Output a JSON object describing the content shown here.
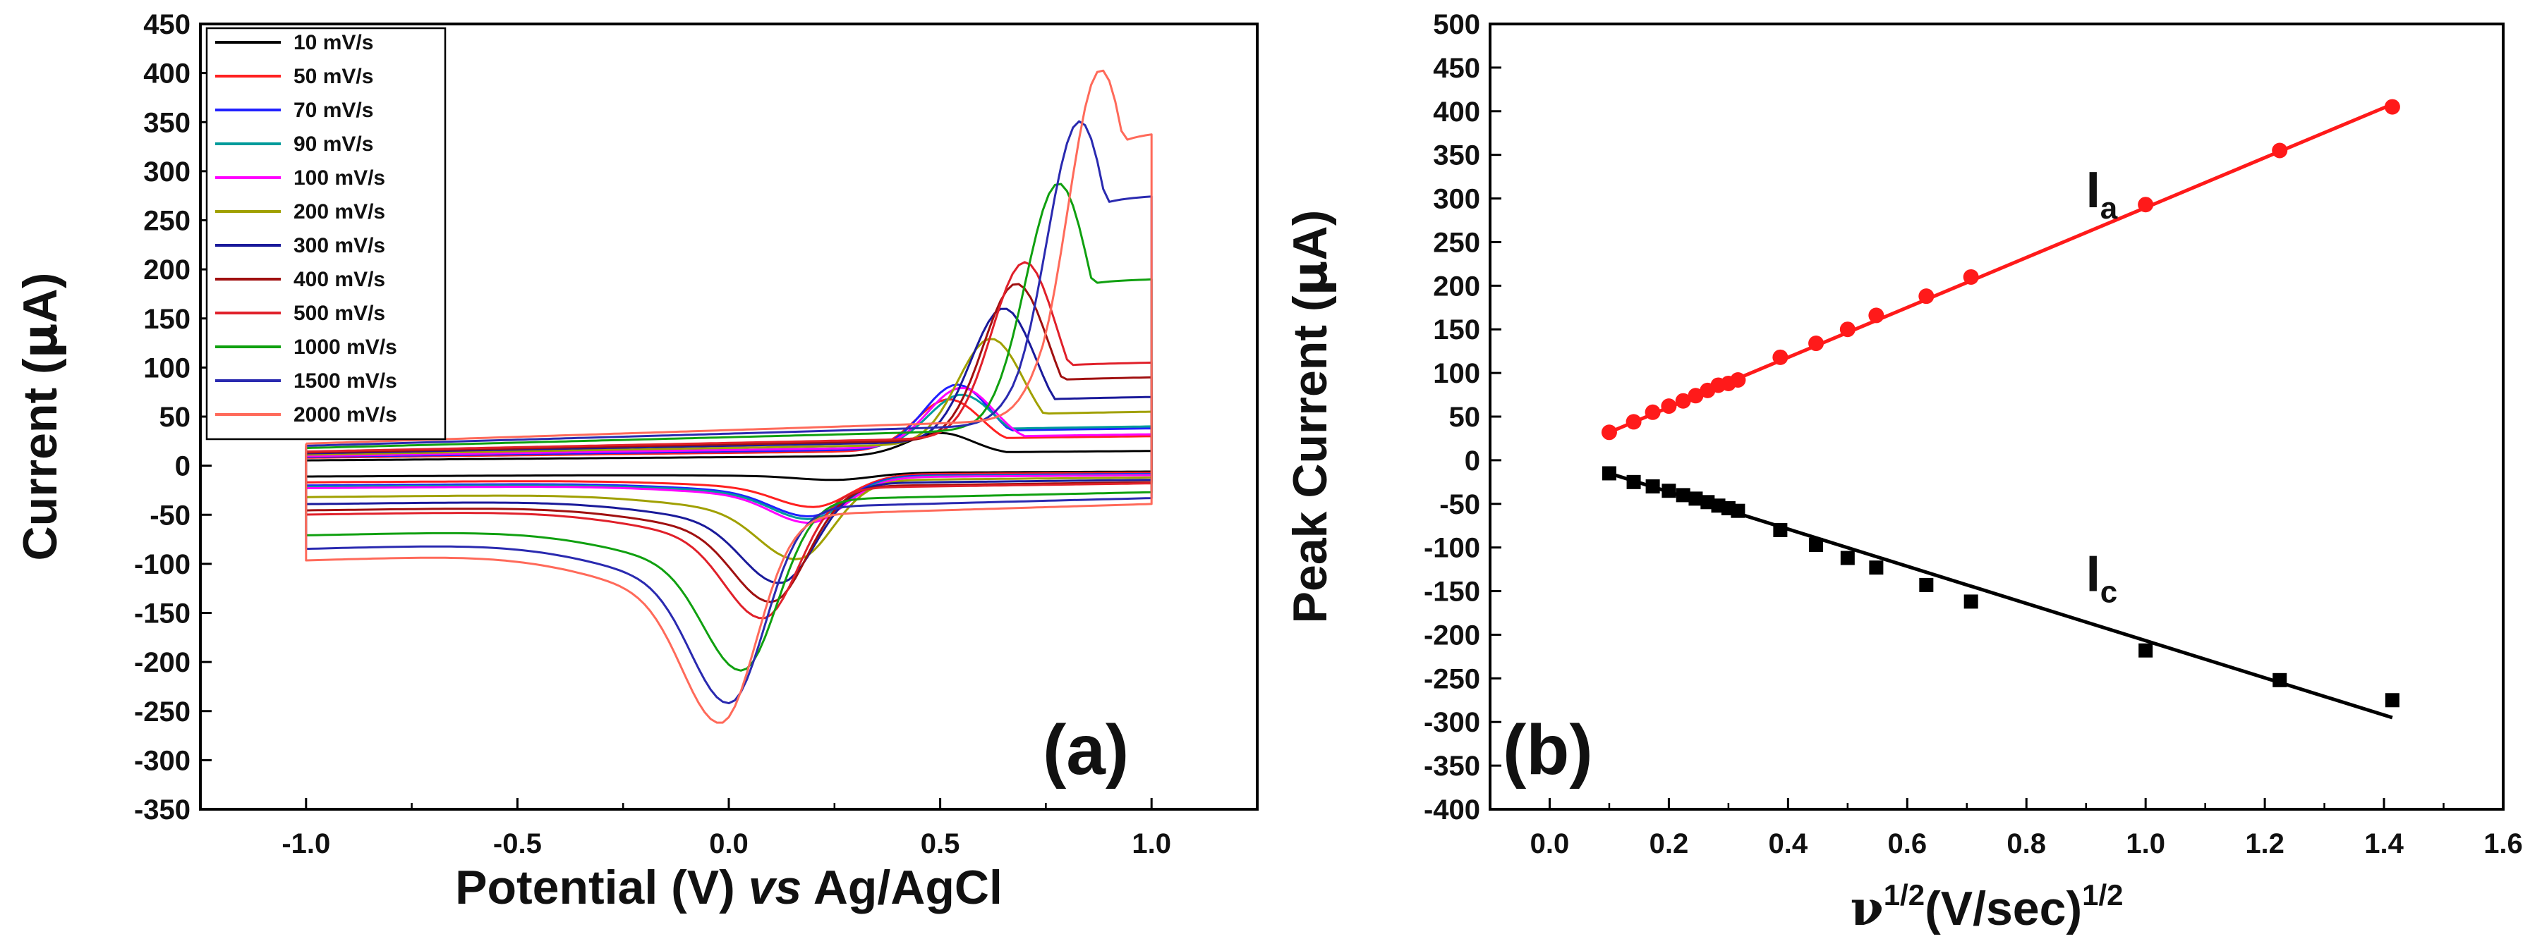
{
  "chart_data": [
    {
      "type": "line",
      "panel_label": "(a)",
      "xlabel_parts": [
        "Potential (V) ",
        "vs",
        " Ag/AgCl"
      ],
      "ylabel_parts": [
        "Current (",
        "μ",
        "A)"
      ],
      "xlim": [
        -1.25,
        1.25
      ],
      "ylim": [
        -350,
        450
      ],
      "xticks": [
        -1.0,
        -0.5,
        0.0,
        0.5,
        1.0
      ],
      "xtick_labels": [
        "-1.0",
        "-0.5",
        "0.0",
        "0.5",
        "1.0"
      ],
      "yticks": [
        -350,
        -300,
        -250,
        -200,
        -150,
        -100,
        -50,
        0,
        50,
        100,
        150,
        200,
        250,
        300,
        350,
        400,
        450
      ],
      "ytick_labels": [
        "-350",
        "-300",
        "-250",
        "-200",
        "-150",
        "-100",
        "-50",
        "0",
        "50",
        "100",
        "150",
        "200",
        "250",
        "300",
        "350",
        "400",
        "450"
      ],
      "legend_position": "top-left",
      "series": [
        {
          "name": "10 mV/s",
          "color": "#000000",
          "anodic_peak": [
            0.5,
            35
          ],
          "cathodic_peak": [
            0.25,
            -17
          ],
          "base_top": 12,
          "base_bottom": -10,
          "end_top": 15,
          "end_bottom": -10
        },
        {
          "name": "50 mV/s",
          "color": "#ff2020",
          "anodic_peak": [
            0.52,
            70
          ],
          "cathodic_peak": [
            0.2,
            -45
          ],
          "base_top": 18,
          "base_bottom": -12,
          "end_top": 30,
          "end_bottom": -15
        },
        {
          "name": "70 mV/s",
          "color": "#2020ff",
          "anodic_peak": [
            0.54,
            85
          ],
          "cathodic_peak": [
            0.19,
            -55
          ],
          "base_top": 20,
          "base_bottom": -14,
          "end_top": 38,
          "end_bottom": -18
        },
        {
          "name": "90 mV/s",
          "color": "#009b9b",
          "anodic_peak": [
            0.55,
            75
          ],
          "cathodic_peak": [
            0.19,
            -58
          ],
          "base_top": 22,
          "base_bottom": -15,
          "end_top": 40,
          "end_bottom": -18
        },
        {
          "name": "100 mV/s",
          "color": "#ff00ff",
          "anodic_peak": [
            0.55,
            82
          ],
          "cathodic_peak": [
            0.19,
            -62
          ],
          "base_top": 22,
          "base_bottom": -16,
          "end_top": 32,
          "end_bottom": -20
        },
        {
          "name": "200 mV/s",
          "color": "#a0a000",
          "anodic_peak": [
            0.62,
            132
          ],
          "cathodic_peak": [
            0.16,
            -100
          ],
          "base_top": 25,
          "base_bottom": -20,
          "end_top": 55,
          "end_bottom": -25
        },
        {
          "name": "300 mV/s",
          "color": "#1a1a9a",
          "anodic_peak": [
            0.65,
            163
          ],
          "cathodic_peak": [
            0.12,
            -125
          ],
          "base_top": 28,
          "base_bottom": -24,
          "end_top": 70,
          "end_bottom": -30
        },
        {
          "name": "400 mV/s",
          "color": "#a01010",
          "anodic_peak": [
            0.68,
            188
          ],
          "cathodic_peak": [
            0.1,
            -145
          ],
          "base_top": 30,
          "base_bottom": -28,
          "end_top": 90,
          "end_bottom": -35
        },
        {
          "name": "500 mV/s",
          "color": "#e0202a",
          "anodic_peak": [
            0.7,
            210
          ],
          "cathodic_peak": [
            0.08,
            -162
          ],
          "base_top": 32,
          "base_bottom": -30,
          "end_top": 105,
          "end_bottom": -38
        },
        {
          "name": "1000 mV/s",
          "color": "#10a010",
          "anodic_peak": [
            0.78,
            290
          ],
          "cathodic_peak": [
            0.03,
            -218
          ],
          "base_top": 40,
          "base_bottom": -45,
          "end_top": 190,
          "end_bottom": -48
        },
        {
          "name": "1500 mV/s",
          "color": "#2a2ab0",
          "anodic_peak": [
            0.83,
            353
          ],
          "cathodic_peak": [
            0.0,
            -253
          ],
          "base_top": 45,
          "base_bottom": -55,
          "end_top": 275,
          "end_bottom": -62
        },
        {
          "name": "2000 mV/s",
          "color": "#ff6a5a",
          "anodic_peak": [
            0.88,
            405
          ],
          "cathodic_peak": [
            -0.02,
            -275
          ],
          "base_top": 50,
          "base_bottom": -65,
          "end_top": 340,
          "end_bottom": -72
        }
      ]
    },
    {
      "type": "scatter",
      "panel_label": "(b)",
      "xlabel_parts": [
        "ν",
        "1/2",
        "(V/sec)",
        "1/2"
      ],
      "ylabel_parts": [
        "Peak Current (",
        "μ",
        "A)"
      ],
      "xlim": [
        -0.1,
        1.6
      ],
      "ylim": [
        -400,
        500
      ],
      "xticks": [
        0.0,
        0.2,
        0.4,
        0.6,
        0.8,
        1.0,
        1.2,
        1.4,
        1.6
      ],
      "xtick_labels": [
        "0.0",
        "0.2",
        "0.4",
        "0.6",
        "0.8",
        "1.0",
        "1.2",
        "1.4",
        "1.6"
      ],
      "yticks": [
        -400,
        -350,
        -300,
        -250,
        -200,
        -150,
        -100,
        -50,
        0,
        50,
        100,
        150,
        200,
        250,
        300,
        350,
        400,
        450,
        500
      ],
      "ytick_labels": [
        "-400",
        "-350",
        "-300",
        "-250",
        "-200",
        "-150",
        "-100",
        "-50",
        "0",
        "50",
        "100",
        "150",
        "200",
        "250",
        "300",
        "350",
        "400",
        "450",
        "500"
      ],
      "series": [
        {
          "name": "Ia",
          "label_main": "I",
          "label_sub": "a",
          "label_at": [
            0.9,
            290
          ],
          "marker": "circle",
          "color": "#ff1a1a",
          "x": [
            0.1,
            0.141,
            0.173,
            0.2,
            0.224,
            0.245,
            0.265,
            0.283,
            0.3,
            0.316,
            0.387,
            0.447,
            0.5,
            0.548,
            0.632,
            0.707,
            1.0,
            1.225,
            1.414
          ],
          "y": [
            32,
            44,
            55,
            62,
            68,
            74,
            80,
            86,
            88,
            92,
            118,
            134,
            150,
            166,
            188,
            210,
            293,
            355,
            405
          ],
          "fit": [
            [
              0.1,
              32
            ],
            [
              1.414,
              408
            ]
          ]
        },
        {
          "name": "Ic",
          "label_main": "I",
          "label_sub": "c",
          "label_at": [
            0.9,
            -150
          ],
          "marker": "square",
          "color": "#000000",
          "x": [
            0.1,
            0.141,
            0.173,
            0.2,
            0.224,
            0.245,
            0.265,
            0.283,
            0.3,
            0.316,
            0.387,
            0.447,
            0.5,
            0.548,
            0.632,
            0.707,
            1.0,
            1.225,
            1.414
          ],
          "y": [
            -15,
            -25,
            -30,
            -35,
            -40,
            -44,
            -48,
            -52,
            -55,
            -58,
            -80,
            -97,
            -112,
            -123,
            -143,
            -162,
            -218,
            -252,
            -275
          ],
          "fit": [
            [
              0.1,
              -15
            ],
            [
              1.414,
              -295
            ]
          ]
        }
      ]
    }
  ]
}
